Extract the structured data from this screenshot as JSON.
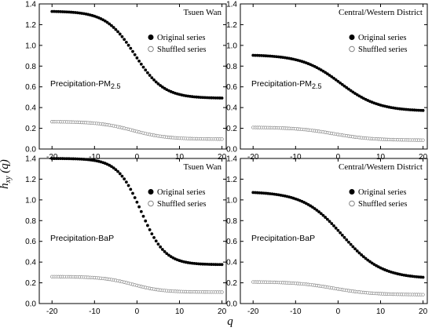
{
  "figure": {
    "ylabel": "h_xy (q)",
    "xlabel": "q",
    "legend": {
      "original": "Original series",
      "shuffled": "Shuffled series"
    }
  },
  "chart_data": [
    {
      "type": "scatter",
      "location": "Tsuen Wan",
      "label_main": "Precipitation-PM",
      "label_sub": "2.5",
      "x": [
        -20,
        20
      ],
      "xlim": [
        -23,
        21
      ],
      "ylim": [
        0,
        1.4
      ],
      "xticks": [
        -20,
        -10,
        0,
        10,
        20
      ],
      "yticks": [
        0.0,
        0.2,
        0.4,
        0.6,
        0.8,
        1.0,
        1.2,
        1.4
      ],
      "series": [
        {
          "name": "Original series",
          "marker": "filled-circle",
          "y_start": 1.33,
          "y_end": 0.49,
          "center": -0.5,
          "scale": 3.4
        },
        {
          "name": "Shuffled series",
          "marker": "open-circle",
          "y_start": 0.265,
          "y_end": 0.095,
          "center": -1,
          "scale": 4.0
        }
      ]
    },
    {
      "type": "scatter",
      "location": "Central/Western District",
      "label_main": "Precipitation-PM",
      "label_sub": "2.5",
      "x": [
        -20,
        20
      ],
      "xlim": [
        -23,
        21
      ],
      "ylim": [
        0,
        1.4
      ],
      "xticks": [
        -20,
        -10,
        0,
        10,
        20
      ],
      "yticks": [
        0.0,
        0.2,
        0.4,
        0.6,
        0.8,
        1.0,
        1.2,
        1.4
      ],
      "series": [
        {
          "name": "Original series",
          "marker": "filled-circle",
          "y_start": 0.91,
          "y_end": 0.365,
          "center": 0.5,
          "scale": 4.5
        },
        {
          "name": "Shuffled series",
          "marker": "open-circle",
          "y_start": 0.21,
          "y_end": 0.085,
          "center": -1,
          "scale": 4.5
        }
      ]
    },
    {
      "type": "scatter",
      "location": "Tsuen Wan",
      "label_main": "Precipitation-BaP",
      "label_sub": "",
      "x": [
        -20,
        20
      ],
      "xlim": [
        -23,
        21
      ],
      "ylim": [
        0,
        1.4
      ],
      "xticks": [
        -20,
        -10,
        0,
        10,
        20
      ],
      "yticks": [
        0.0,
        0.2,
        0.4,
        0.6,
        0.8,
        1.0,
        1.2,
        1.4
      ],
      "series": [
        {
          "name": "Original series",
          "marker": "filled-circle",
          "y_start": 1.4,
          "y_end": 0.375,
          "center": 1.0,
          "scale": 2.8
        },
        {
          "name": "Shuffled series",
          "marker": "open-circle",
          "y_start": 0.26,
          "y_end": 0.11,
          "center": -1,
          "scale": 3.5
        }
      ]
    },
    {
      "type": "scatter",
      "location": "Central/Western District",
      "label_main": "Precipitation-BaP",
      "label_sub": "",
      "x": [
        -20,
        20
      ],
      "xlim": [
        -23,
        21
      ],
      "ylim": [
        0,
        1.4
      ],
      "xticks": [
        -20,
        -10,
        0,
        10,
        20
      ],
      "yticks": [
        0.0,
        0.2,
        0.4,
        0.6,
        0.8,
        1.0,
        1.2,
        1.4
      ],
      "series": [
        {
          "name": "Original series",
          "marker": "filled-circle",
          "y_start": 1.08,
          "y_end": 0.24,
          "center": 1.0,
          "scale": 4.6
        },
        {
          "name": "Shuffled series",
          "marker": "open-circle",
          "y_start": 0.21,
          "y_end": 0.085,
          "center": -1,
          "scale": 4.5
        }
      ]
    }
  ]
}
